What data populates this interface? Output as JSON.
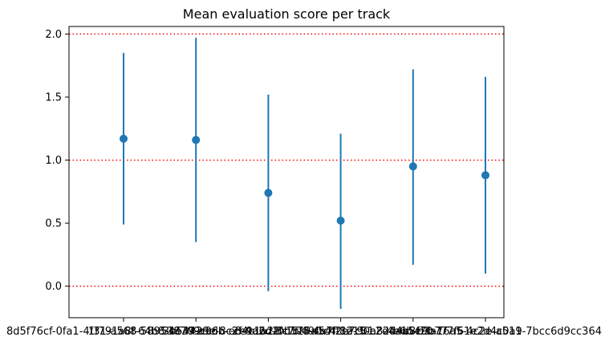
{
  "chart_data": {
    "type": "scatter",
    "title": "Mean evaluation score per track",
    "xlabel": "",
    "ylabel": "",
    "categories": [
      "8d5f76cf-0fa1-4f31-a568-589538709cc6",
      "1f791a8f-64b8-4e39-a9db-e84c1a2f0b52",
      "3b54429e-8c2f-4d2d-8c7f-49f54f2e7c01",
      "ce9a6d2f-1bf8-4a7f-8e15-c2d4aa5e9b77",
      "5a1c4f12-90a8-4e6b-b3a1-7f61e2d4c0a9",
      "2d4b8f70-76a5-4c2e-a511-7bcc6d9cc364"
    ],
    "series": [
      {
        "values": [
          1.17,
          1.16,
          0.74,
          0.52,
          0.95,
          0.88
        ],
        "err_low": [
          0.49,
          0.35,
          -0.04,
          -0.18,
          0.17,
          0.1
        ],
        "err_high": [
          1.85,
          1.97,
          1.52,
          1.21,
          1.72,
          1.66
        ]
      }
    ],
    "reference_lines": [
      0,
      1,
      2
    ],
    "yticks": [
      0.0,
      0.5,
      1.0,
      1.5,
      2.0
    ],
    "ylim": [
      -0.25,
      2.06
    ],
    "grid": false,
    "colors": {
      "marker": "#1f77b4",
      "reference": "#ff0000"
    }
  }
}
